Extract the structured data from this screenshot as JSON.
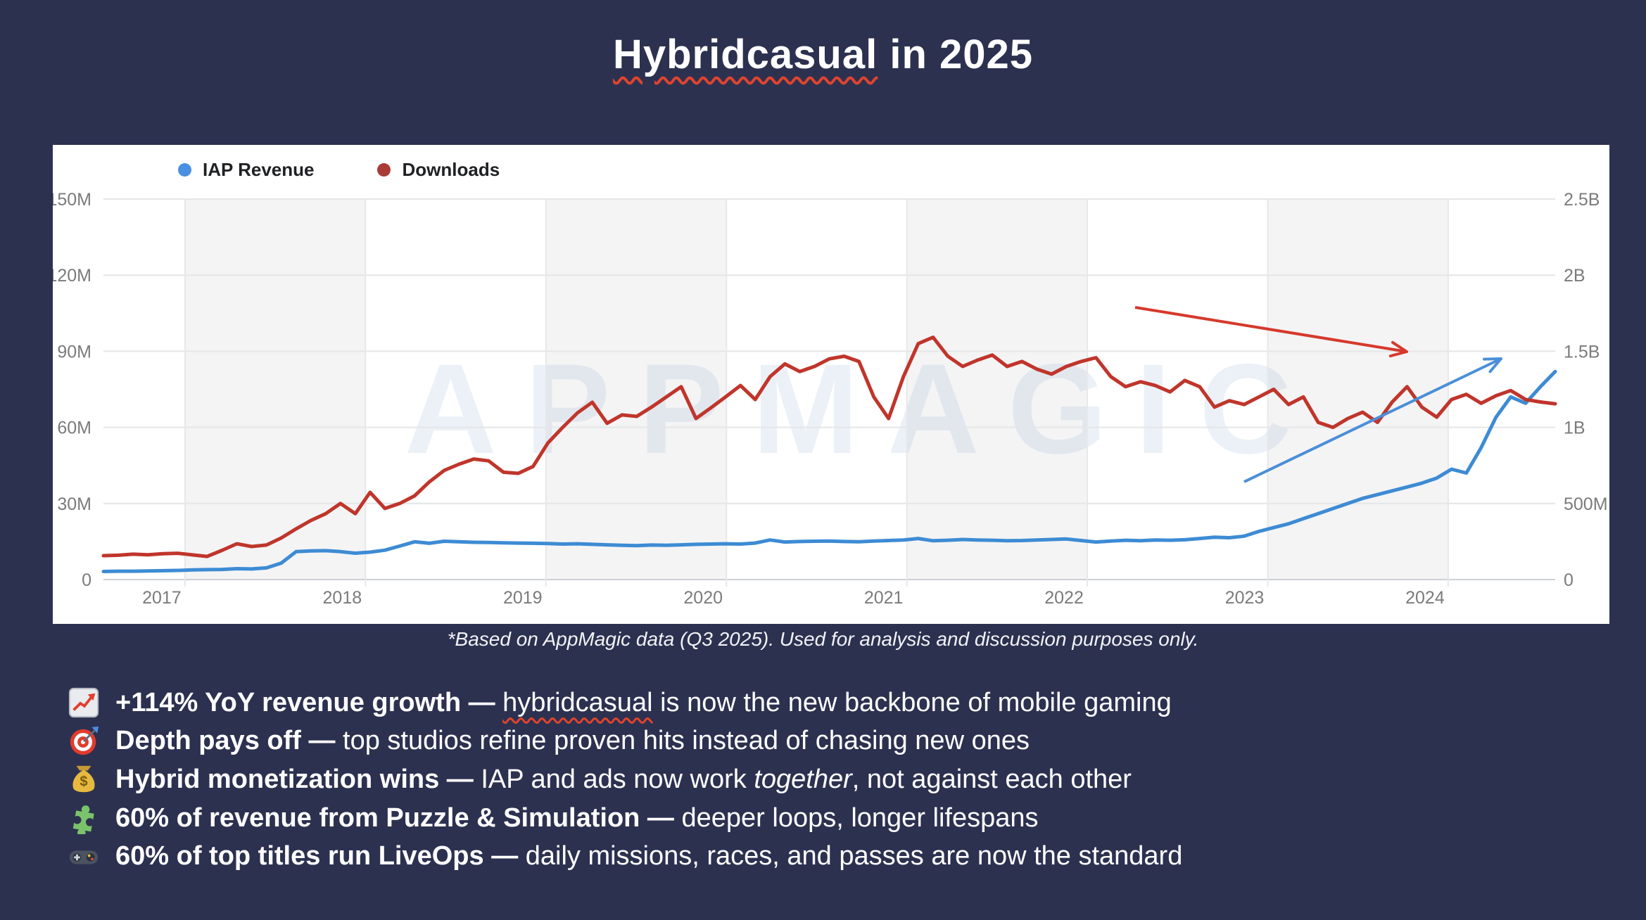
{
  "title": {
    "segments": [
      {
        "t": "Hybridcasual",
        "u": 1
      },
      {
        "t": " in 2025"
      }
    ]
  },
  "chart": {
    "legend": [
      {
        "label": "IAP Revenue",
        "color": "#4a90e2"
      },
      {
        "label": "Downloads",
        "color": "#a93c38"
      }
    ]
  },
  "chart_data": {
    "type": "line",
    "title": "",
    "watermark": "APPMAGIC",
    "x_tick_labels": [
      "2017",
      "2018",
      "2019",
      "2020",
      "2021",
      "2022",
      "2023",
      "2024"
    ],
    "x_monthly_from": "2016-07",
    "x_monthly_to": "2024-09",
    "grid": true,
    "legend_position": "top-left",
    "left_axis": {
      "series": "IAP Revenue",
      "unit": "USD per month, millions",
      "max": 150,
      "ticks_top_to_bottom": [
        "150M",
        "120M",
        "90M",
        "60M",
        "30M",
        "0"
      ]
    },
    "right_axis": {
      "series": "Downloads",
      "unit": "downloads per month, millions",
      "max": 2500,
      "ticks_top_to_bottom": [
        "2.5B",
        "2B",
        "1.5B",
        "1B",
        "500M",
        "0"
      ]
    },
    "series": [
      {
        "name": "IAP Revenue",
        "axis": "left",
        "color": "#3d8bd4",
        "values": [
          3.2,
          3.3,
          3.3,
          3.4,
          3.5,
          3.6,
          3.8,
          3.9,
          4.0,
          4.3,
          4.2,
          4.6,
          6.5,
          11.0,
          11.3,
          11.4,
          11.0,
          10.4,
          10.8,
          11.6,
          13.2,
          14.9,
          14.3,
          15.1,
          14.9,
          14.7,
          14.6,
          14.5,
          14.4,
          14.3,
          14.2,
          14.0,
          14.1,
          13.9,
          13.7,
          13.5,
          13.4,
          13.6,
          13.5,
          13.7,
          13.9,
          14.0,
          14.1,
          14.0,
          14.4,
          15.6,
          14.8,
          15.0,
          15.1,
          15.2,
          15.0,
          14.9,
          15.2,
          15.4,
          15.6,
          16.2,
          15.3,
          15.5,
          15.8,
          15.6,
          15.5,
          15.3,
          15.4,
          15.6,
          15.8,
          16.0,
          15.4,
          14.8,
          15.2,
          15.5,
          15.3,
          15.6,
          15.5,
          15.7,
          16.2,
          16.7,
          16.5,
          17.1,
          19.0,
          20.5,
          22.0,
          24.0,
          26.0,
          28.0,
          30.0,
          32.0,
          33.5,
          35.0,
          36.5,
          38.0,
          40.0,
          43.5,
          42.0,
          52.0,
          64.0,
          72.0,
          69.5,
          76.0,
          82.0
        ]
      },
      {
        "name": "Downloads",
        "axis": "right",
        "color": "#c0352b",
        "values": [
          157,
          160,
          167,
          163,
          170,
          173,
          162,
          152,
          192,
          235,
          217,
          227,
          273,
          333,
          388,
          433,
          500,
          433,
          573,
          467,
          500,
          550,
          642,
          717,
          758,
          792,
          780,
          705,
          698,
          743,
          897,
          1000,
          1095,
          1165,
          1027,
          1082,
          1072,
          1133,
          1200,
          1267,
          1058,
          1128,
          1200,
          1275,
          1183,
          1333,
          1417,
          1367,
          1400,
          1450,
          1467,
          1433,
          1200,
          1058,
          1333,
          1550,
          1592,
          1467,
          1400,
          1442,
          1475,
          1400,
          1433,
          1383,
          1350,
          1400,
          1433,
          1458,
          1333,
          1267,
          1300,
          1275,
          1233,
          1308,
          1267,
          1133,
          1175,
          1150,
          1200,
          1250,
          1150,
          1200,
          1033,
          1000,
          1058,
          1100,
          1033,
          1167,
          1267,
          1133,
          1067,
          1183,
          1217,
          1158,
          1208,
          1242,
          1183,
          1167,
          1155
        ]
      }
    ],
    "annotations": [
      {
        "name": "downloads-trend-arrow",
        "shape": "arrow",
        "meaning": "downloads flattening/declining",
        "color": "#d6392c",
        "from": [
          1538,
          231
        ],
        "to": [
          1924,
          294
        ]
      },
      {
        "name": "revenue-trend-arrow",
        "shape": "arrow",
        "meaning": "IAP revenue accelerating",
        "color": "#4a8fd8",
        "from": [
          1693,
          479
        ],
        "to": [
          2058,
          304
        ]
      }
    ]
  },
  "caption": "*Based on AppMagic data (Q3 2025). Used for analysis and discussion purposes only.",
  "bullets": [
    {
      "icon": "chart-increasing-icon",
      "segments": [
        {
          "t": "+114% YoY revenue growth — ",
          "b": 1
        },
        {
          "t": "hybridcasual",
          "u": 1
        },
        {
          "t": " is now the new backbone of mobile gaming"
        }
      ]
    },
    {
      "icon": "direct-hit-icon",
      "segments": [
        {
          "t": "Depth pays off — ",
          "b": 1
        },
        {
          "t": "top studios refine proven hits instead of chasing new ones"
        }
      ]
    },
    {
      "icon": "money-bag-icon",
      "segments": [
        {
          "t": "Hybrid monetization wins — ",
          "b": 1
        },
        {
          "t": "IAP and ads now work "
        },
        {
          "t": "together",
          "i": 1
        },
        {
          "t": ", not against each other"
        }
      ]
    },
    {
      "icon": "puzzle-piece-icon",
      "segments": [
        {
          "t": "60% of revenue from Puzzle & Simulation — ",
          "b": 1
        },
        {
          "t": "deeper loops, longer lifespans"
        }
      ]
    },
    {
      "icon": "video-game-icon",
      "segments": [
        {
          "t": "60% of top titles run LiveOps — ",
          "b": 1
        },
        {
          "t": "daily missions, races, and passes are now the standard"
        }
      ]
    }
  ]
}
